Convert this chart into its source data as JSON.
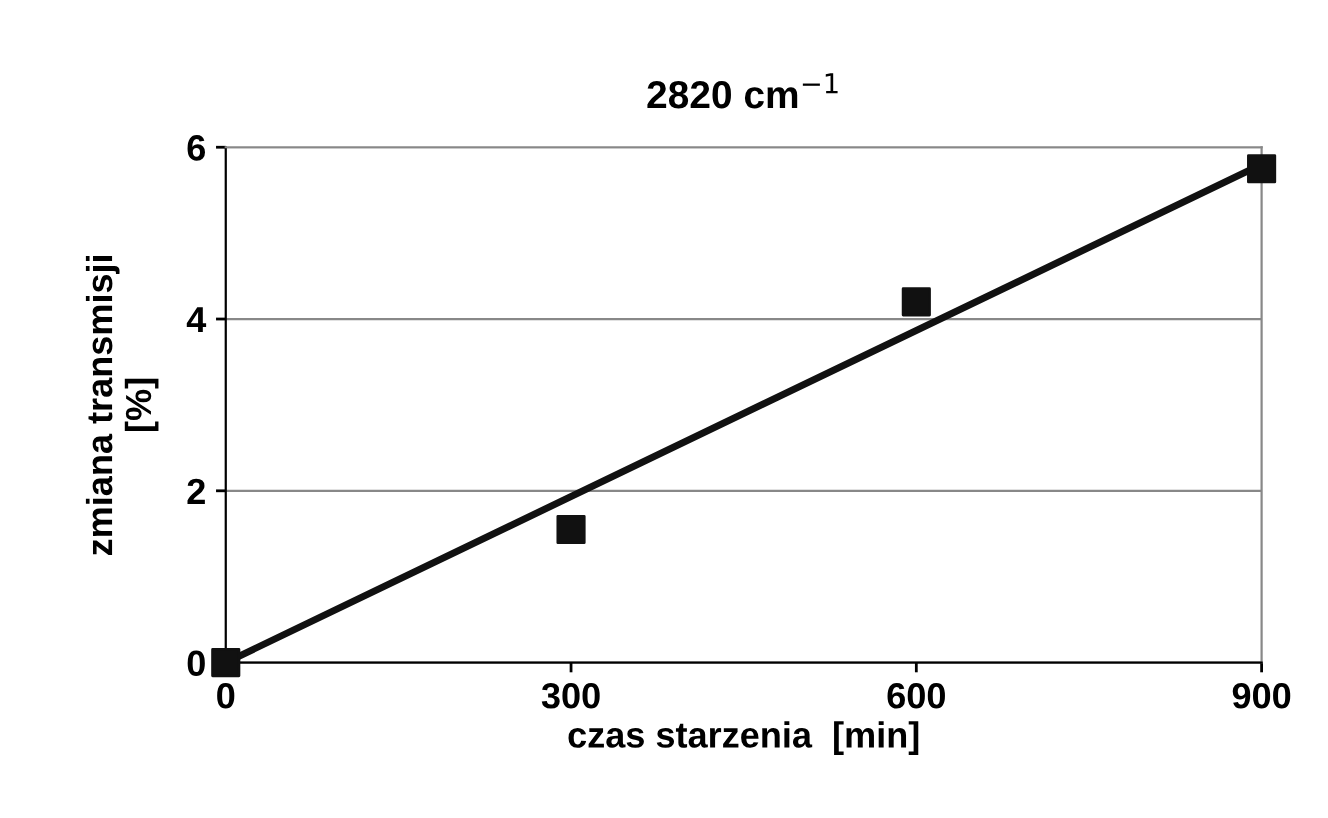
{
  "chart_data": {
    "type": "scatter",
    "title": "2820 cm$^{−1}$",
    "xlabel": "czas starzenia  [min]",
    "ylabel": "zmiana transmisji\n[%]",
    "xlim": [
      0,
      900
    ],
    "xticks": [
      0,
      300,
      600,
      900
    ],
    "ylim": [
      0,
      6
    ],
    "yticks": [
      0,
      2,
      4,
      6
    ],
    "grid": "y",
    "legend": false,
    "marker": "square",
    "series": [
      {
        "color": "#111111",
        "x": [
          0,
          300,
          600,
          900
        ],
        "values": [
          0,
          1.55,
          4.2,
          5.75
        ]
      },
      {
        "type": "line",
        "color": "#111111",
        "x": [
          0,
          900
        ],
        "values": [
          0,
          5.8
        ],
        "marker": "none",
        "line_style": "solid"
      }
    ]
  }
}
